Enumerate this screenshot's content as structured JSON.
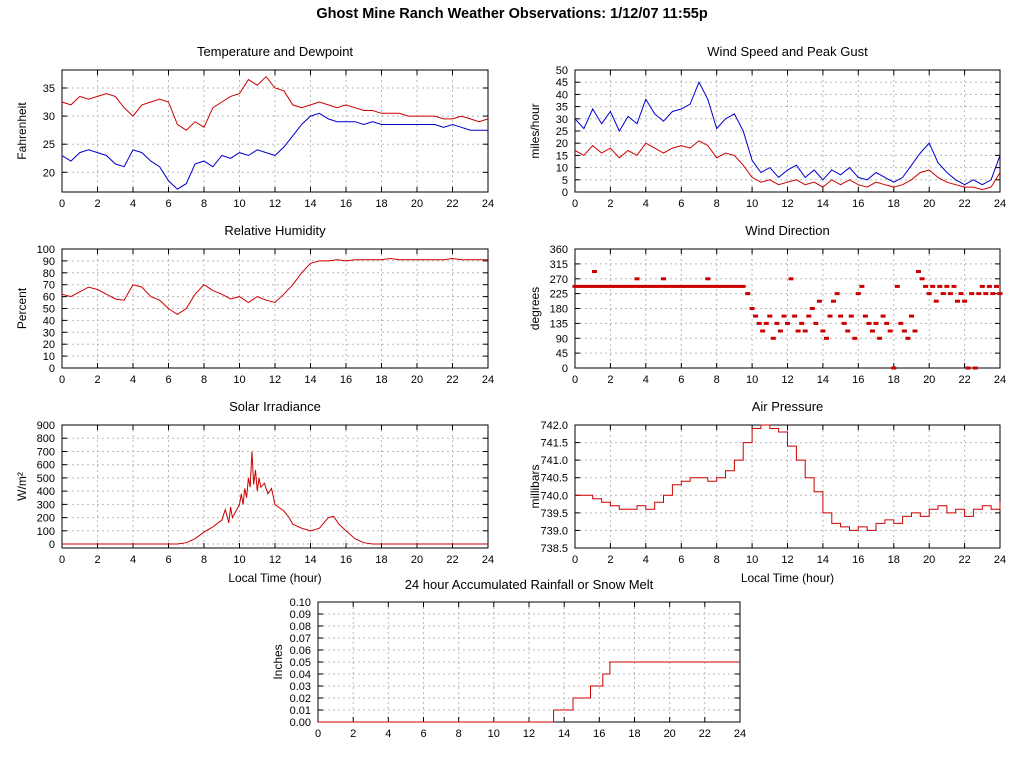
{
  "page_title": "Ghost Mine Ranch Weather Observations: 1/12/07 11:55p",
  "x_ticks": [
    "0",
    "2",
    "4",
    "6",
    "8",
    "10",
    "12",
    "14",
    "16",
    "18",
    "20",
    "22",
    "24"
  ],
  "colors": {
    "red": "#cc0000",
    "blue": "#0000cc"
  },
  "chart_data": [
    {
      "title": "Temperature and Dewpoint",
      "type": "line",
      "ylabel": "Fahrenheit",
      "xlim": [
        0,
        24
      ],
      "ylim": [
        16.5,
        38.2
      ],
      "yticks": [
        "20",
        "25",
        "30",
        "35"
      ],
      "series": [
        {
          "name": "temperature",
          "color": "#cc0000",
          "x0": 0,
          "dx": 0.5,
          "y": [
            32.5,
            32,
            33.5,
            33,
            33.5,
            34,
            33.5,
            31.5,
            30,
            32,
            32.5,
            33,
            32.5,
            28.5,
            27.5,
            29,
            28,
            31.5,
            32.5,
            33.5,
            34,
            36.5,
            35.5,
            37,
            35,
            34.5,
            32,
            31.5,
            32,
            32.5,
            32,
            31.5,
            32,
            31.5,
            31,
            31,
            30.5,
            30.5,
            30.5,
            30,
            30,
            30,
            30,
            29.5,
            29.5,
            30,
            29.5,
            29,
            29.5
          ]
        },
        {
          "name": "dewpoint",
          "color": "#0000cc",
          "x0": 0,
          "dx": 0.5,
          "y": [
            23,
            22,
            23.5,
            24,
            23.5,
            23,
            21.5,
            21,
            24,
            23.5,
            22,
            21,
            18.5,
            17,
            18,
            21.5,
            22,
            21,
            23,
            22.5,
            23.5,
            23,
            24,
            23.5,
            23,
            24.5,
            26.5,
            28.5,
            30,
            30.5,
            29.5,
            29,
            29,
            29,
            28.5,
            29,
            28.5,
            28.5,
            28.5,
            28.5,
            28.5,
            28.5,
            28.5,
            28,
            28.5,
            28,
            27.5,
            27.5,
            27.5
          ]
        }
      ]
    },
    {
      "title": "Wind Speed and Peak Gust",
      "type": "line",
      "ylabel": "miles/hour",
      "xlim": [
        0,
        24
      ],
      "ylim": [
        0,
        50
      ],
      "yticks": [
        "0",
        "5",
        "10",
        "15",
        "20",
        "25",
        "30",
        "35",
        "40",
        "45",
        "50"
      ],
      "series": [
        {
          "name": "peak gust",
          "color": "#0000cc",
          "x0": 0,
          "dx": 0.5,
          "y": [
            30,
            26,
            34,
            28,
            33,
            25,
            31,
            28,
            38,
            32,
            29,
            33,
            34,
            36,
            45,
            38,
            26,
            30,
            32,
            25,
            13,
            8,
            10,
            6,
            9,
            11,
            6,
            9,
            5,
            9,
            7,
            10,
            6,
            5,
            8,
            6,
            4,
            6,
            11,
            16,
            20,
            12,
            8,
            5,
            3,
            5,
            3,
            5,
            15
          ]
        },
        {
          "name": "wind speed",
          "color": "#cc0000",
          "x0": 0,
          "dx": 0.5,
          "y": [
            17,
            15,
            19,
            16,
            18,
            14,
            17,
            15,
            20,
            18,
            16,
            18,
            19,
            18,
            21,
            19,
            14,
            16,
            15,
            11,
            6,
            4,
            5,
            3,
            4,
            5,
            3,
            4,
            2,
            5,
            3,
            5,
            3,
            2,
            4,
            3,
            2,
            3,
            5,
            8,
            9,
            6,
            4,
            3,
            2,
            2,
            1,
            2,
            8
          ]
        }
      ]
    },
    {
      "title": "Relative Humidity",
      "type": "line",
      "ylabel": "Percent",
      "xlim": [
        0,
        24
      ],
      "ylim": [
        0,
        100
      ],
      "yticks": [
        "0",
        "10",
        "20",
        "30",
        "40",
        "50",
        "60",
        "70",
        "80",
        "90",
        "100"
      ],
      "series": [
        {
          "name": "relative humidity",
          "color": "#cc0000",
          "x0": 0,
          "dx": 0.5,
          "y": [
            62,
            60,
            64,
            68,
            66,
            62,
            58,
            57,
            70,
            68,
            60,
            57,
            50,
            45,
            50,
            62,
            70,
            65,
            62,
            58,
            60,
            55,
            60,
            57,
            55,
            62,
            70,
            80,
            88,
            90,
            90,
            91,
            90,
            91,
            91,
            91,
            91,
            92,
            91,
            91,
            91,
            91,
            91,
            91,
            92,
            91,
            91,
            91,
            91
          ]
        }
      ]
    },
    {
      "title": "Wind Direction",
      "type": "scatter",
      "ylabel": "degrees",
      "xlim": [
        0,
        24
      ],
      "ylim": [
        0,
        360
      ],
      "yticks": [
        "0",
        "45",
        "90",
        "135",
        "180",
        "225",
        "270",
        "315",
        "360"
      ],
      "series": [
        {
          "name": "wind direction",
          "color": "#cc0000",
          "points": [
            [
              0,
              247
            ],
            [
              0.25,
              247
            ],
            [
              0.5,
              247
            ],
            [
              0.75,
              247
            ],
            [
              1,
              247
            ],
            [
              1.1,
              292
            ],
            [
              1.25,
              247
            ],
            [
              1.5,
              247
            ],
            [
              1.75,
              247
            ],
            [
              2,
              247
            ],
            [
              2.25,
              247
            ],
            [
              2.5,
              247
            ],
            [
              2.75,
              247
            ],
            [
              3,
              247
            ],
            [
              3.25,
              247
            ],
            [
              3.5,
              270
            ],
            [
              3.5,
              247
            ],
            [
              3.75,
              247
            ],
            [
              4,
              247
            ],
            [
              4.25,
              247
            ],
            [
              4.5,
              247
            ],
            [
              4.75,
              247
            ],
            [
              5,
              270
            ],
            [
              5,
              247
            ],
            [
              5.25,
              247
            ],
            [
              5.5,
              247
            ],
            [
              5.75,
              247
            ],
            [
              6,
              247
            ],
            [
              6.25,
              247
            ],
            [
              6.5,
              247
            ],
            [
              6.75,
              247
            ],
            [
              7,
              247
            ],
            [
              7.25,
              247
            ],
            [
              7.5,
              270
            ],
            [
              7.5,
              247
            ],
            [
              7.75,
              247
            ],
            [
              8,
              247
            ],
            [
              8.25,
              247
            ],
            [
              8.5,
              247
            ],
            [
              8.75,
              247
            ],
            [
              9,
              247
            ],
            [
              9.25,
              247
            ],
            [
              9.5,
              247
            ],
            [
              9.75,
              225
            ],
            [
              10,
              180
            ],
            [
              10.2,
              157
            ],
            [
              10.4,
              135
            ],
            [
              10.6,
              112
            ],
            [
              10.8,
              135
            ],
            [
              11,
              157
            ],
            [
              11.2,
              90
            ],
            [
              11.4,
              135
            ],
            [
              11.6,
              112
            ],
            [
              11.8,
              157
            ],
            [
              12,
              135
            ],
            [
              12.2,
              270
            ],
            [
              12.4,
              157
            ],
            [
              12.6,
              112
            ],
            [
              12.8,
              135
            ],
            [
              13,
              112
            ],
            [
              13.2,
              157
            ],
            [
              13.4,
              180
            ],
            [
              13.6,
              135
            ],
            [
              13.8,
              202
            ],
            [
              14,
              112
            ],
            [
              14.2,
              90
            ],
            [
              14.4,
              157
            ],
            [
              14.6,
              202
            ],
            [
              14.8,
              225
            ],
            [
              15,
              157
            ],
            [
              15.2,
              135
            ],
            [
              15.4,
              112
            ],
            [
              15.6,
              157
            ],
            [
              15.8,
              90
            ],
            [
              16,
              225
            ],
            [
              16.2,
              247
            ],
            [
              16.4,
              157
            ],
            [
              16.6,
              135
            ],
            [
              16.8,
              112
            ],
            [
              17,
              135
            ],
            [
              17.2,
              90
            ],
            [
              17.4,
              157
            ],
            [
              17.6,
              135
            ],
            [
              17.8,
              112
            ],
            [
              18,
              0
            ],
            [
              18.2,
              247
            ],
            [
              18.4,
              135
            ],
            [
              18.6,
              112
            ],
            [
              18.8,
              90
            ],
            [
              19,
              157
            ],
            [
              19.2,
              112
            ],
            [
              19.4,
              292
            ],
            [
              19.6,
              270
            ],
            [
              19.8,
              247
            ],
            [
              20,
              225
            ],
            [
              20.2,
              247
            ],
            [
              20.4,
              202
            ],
            [
              20.6,
              247
            ],
            [
              20.8,
              225
            ],
            [
              21,
              247
            ],
            [
              21.2,
              225
            ],
            [
              21.4,
              247
            ],
            [
              21.6,
              202
            ],
            [
              21.8,
              225
            ],
            [
              22,
              202
            ],
            [
              22.2,
              0
            ],
            [
              22.4,
              225
            ],
            [
              22.6,
              0
            ],
            [
              22.8,
              225
            ],
            [
              23,
              247
            ],
            [
              23.2,
              225
            ],
            [
              23.4,
              247
            ],
            [
              23.6,
              225
            ],
            [
              23.8,
              247
            ],
            [
              24,
              225
            ]
          ]
        }
      ]
    },
    {
      "title": "Solar Irradiance",
      "type": "line",
      "ylabel": "W/m²",
      "xlabel": "Local Time (hour)",
      "xlim": [
        0,
        24
      ],
      "ylim": [
        -30,
        900
      ],
      "yticks": [
        "0",
        "100",
        "200",
        "300",
        "400",
        "500",
        "600",
        "700",
        "800",
        "900"
      ],
      "series": [
        {
          "name": "solar irradiance",
          "color": "#cc0000",
          "x": [
            0,
            6.5,
            7,
            7.5,
            8,
            8.5,
            9,
            9.2,
            9.4,
            9.5,
            9.6,
            9.8,
            10,
            10.1,
            10.2,
            10.3,
            10.4,
            10.5,
            10.6,
            10.7,
            10.8,
            10.9,
            11,
            11.1,
            11.2,
            11.4,
            11.6,
            11.8,
            12,
            12.2,
            12.5,
            12.8,
            13,
            13.5,
            14,
            14.5,
            15,
            15.3,
            15.6,
            16,
            16.5,
            17,
            17.5,
            18,
            24
          ],
          "y": [
            0,
            0,
            10,
            40,
            90,
            130,
            180,
            260,
            160,
            280,
            200,
            250,
            300,
            380,
            300,
            420,
            350,
            500,
            430,
            700,
            450,
            560,
            400,
            500,
            430,
            460,
            380,
            420,
            300,
            280,
            250,
            200,
            150,
            120,
            100,
            120,
            200,
            210,
            150,
            100,
            40,
            10,
            0,
            0,
            0
          ]
        }
      ]
    },
    {
      "title": "Air Pressure",
      "type": "line",
      "ylabel": "millibars",
      "xlabel": "Local Time (hour)",
      "xlim": [
        0,
        24
      ],
      "ylim": [
        738.5,
        742.0
      ],
      "yticks": [
        "738.5",
        "739.0",
        "739.5",
        "740.0",
        "740.5",
        "741.0",
        "741.5",
        "742.0"
      ],
      "series": [
        {
          "name": "air pressure",
          "color": "#cc0000",
          "step": true,
          "x0": 0,
          "dx": 0.5,
          "y": [
            740.0,
            740.0,
            739.9,
            739.8,
            739.7,
            739.6,
            739.6,
            739.7,
            739.6,
            739.8,
            740.0,
            740.3,
            740.4,
            740.5,
            740.5,
            740.4,
            740.5,
            740.7,
            741.0,
            741.5,
            741.9,
            742.0,
            741.9,
            741.8,
            741.4,
            741.0,
            740.5,
            740.1,
            739.5,
            739.2,
            739.1,
            739.0,
            739.1,
            739.0,
            739.2,
            739.3,
            739.2,
            739.4,
            739.5,
            739.4,
            739.6,
            739.7,
            739.5,
            739.6,
            739.4,
            739.6,
            739.7,
            739.6,
            739.8
          ]
        }
      ]
    },
    {
      "title": "24 hour Accumulated Rainfall or Snow Melt",
      "type": "line",
      "ylabel": "Inches",
      "xlim": [
        0,
        24
      ],
      "ylim": [
        0,
        0.1
      ],
      "yticks": [
        "0.00",
        "0.01",
        "0.02",
        "0.03",
        "0.04",
        "0.05",
        "0.06",
        "0.07",
        "0.08",
        "0.09",
        "0.10"
      ],
      "series": [
        {
          "name": "accumulated rainfall",
          "color": "#cc0000",
          "step": true,
          "x": [
            0,
            13.2,
            13.4,
            14.2,
            14.5,
            15.2,
            15.5,
            15.9,
            16.2,
            16.6,
            24
          ],
          "y": [
            0,
            0,
            0.01,
            0.01,
            0.02,
            0.02,
            0.03,
            0.03,
            0.04,
            0.05,
            0.05
          ]
        }
      ]
    }
  ]
}
